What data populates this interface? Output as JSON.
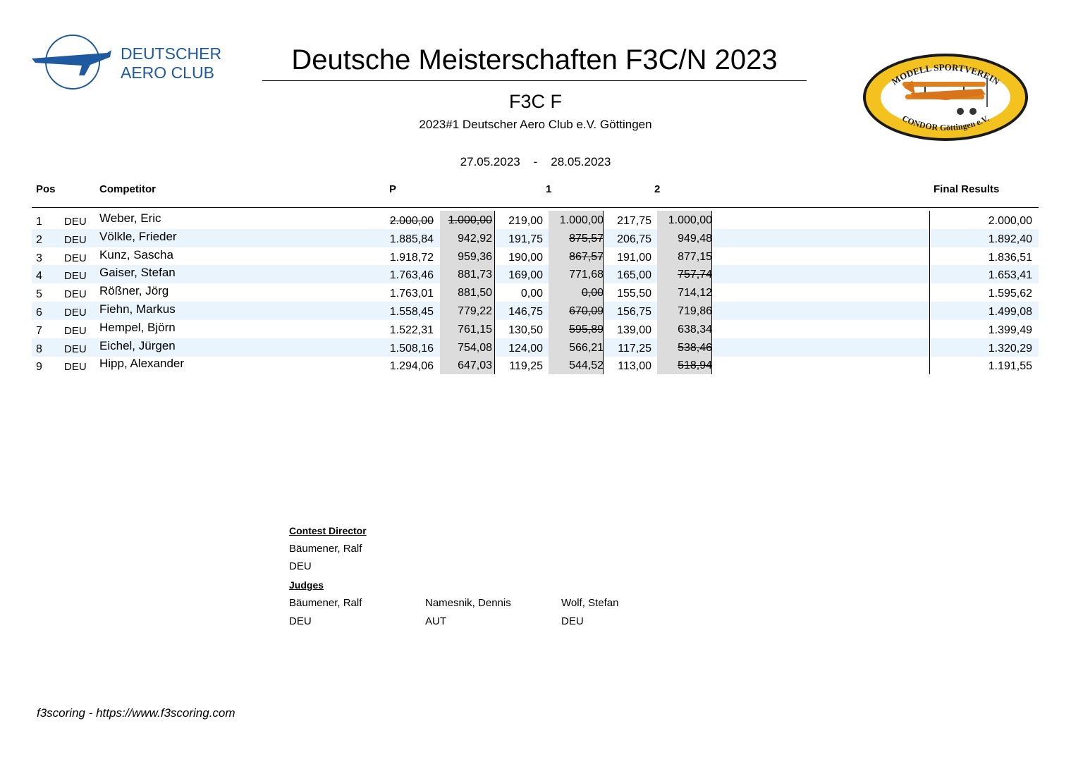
{
  "header": {
    "dac_logo_text": [
      "DEUTSCHER",
      "AERO CLUB"
    ],
    "title": "Deutsche Meisterschaften F3C/N 2023",
    "class_name": "F3C F",
    "event": "2023#1 Deutscher Aero Club e.V. Göttingen",
    "date_from": "27.05.2023",
    "date_sep": "-",
    "date_to": "28.05.2023",
    "club_logo_top": "MODELL SPORTVEREIN",
    "club_logo_bottom": "CONDOR Göttingen e.V."
  },
  "table": {
    "headers": {
      "pos": "Pos",
      "competitor": "Competitor",
      "p": "P",
      "r1": "1",
      "r2": "2",
      "final": "Final Results"
    },
    "rows": [
      {
        "pos": "1",
        "nat": "DEU",
        "name": "Weber, Eric",
        "p_raw": "2.000,00",
        "p_norm": "1.000,00",
        "r1_raw": "219,00",
        "r1_norm": "1.000,00",
        "r2_raw": "217,75",
        "r2_norm": "1.000,00",
        "final": "2.000,00",
        "struck": [
          "p_raw",
          "p_norm"
        ]
      },
      {
        "pos": "2",
        "nat": "DEU",
        "name": "Völkle, Frieder",
        "p_raw": "1.885,84",
        "p_norm": "942,92",
        "r1_raw": "191,75",
        "r1_norm": "875,57",
        "r2_raw": "206,75",
        "r2_norm": "949,48",
        "final": "1.892,40",
        "struck": [
          "r1_norm"
        ]
      },
      {
        "pos": "3",
        "nat": "DEU",
        "name": "Kunz, Sascha",
        "p_raw": "1.918,72",
        "p_norm": "959,36",
        "r1_raw": "190,00",
        "r1_norm": "867,57",
        "r2_raw": "191,00",
        "r2_norm": "877,15",
        "final": "1.836,51",
        "struck": [
          "r1_norm"
        ]
      },
      {
        "pos": "4",
        "nat": "DEU",
        "name": "Gaiser, Stefan",
        "p_raw": "1.763,46",
        "p_norm": "881,73",
        "r1_raw": "169,00",
        "r1_norm": "771,68",
        "r2_raw": "165,00",
        "r2_norm": "757,74",
        "final": "1.653,41",
        "struck": [
          "r2_norm"
        ]
      },
      {
        "pos": "5",
        "nat": "DEU",
        "name": "Rößner, Jörg",
        "p_raw": "1.763,01",
        "p_norm": "881,50",
        "r1_raw": "0,00",
        "r1_norm": "0,00",
        "r2_raw": "155,50",
        "r2_norm": "714,12",
        "final": "1.595,62",
        "struck": [
          "r1_norm"
        ]
      },
      {
        "pos": "6",
        "nat": "DEU",
        "name": "Fiehn, Markus",
        "p_raw": "1.558,45",
        "p_norm": "779,22",
        "r1_raw": "146,75",
        "r1_norm": "670,09",
        "r2_raw": "156,75",
        "r2_norm": "719,86",
        "final": "1.499,08",
        "struck": [
          "r1_norm"
        ]
      },
      {
        "pos": "7",
        "nat": "DEU",
        "name": "Hempel, Björn",
        "p_raw": "1.522,31",
        "p_norm": "761,15",
        "r1_raw": "130,50",
        "r1_norm": "595,89",
        "r2_raw": "139,00",
        "r2_norm": "638,34",
        "final": "1.399,49",
        "struck": [
          "r1_norm"
        ]
      },
      {
        "pos": "8",
        "nat": "DEU",
        "name": "Eichel, Jürgen",
        "p_raw": "1.508,16",
        "p_norm": "754,08",
        "r1_raw": "124,00",
        "r1_norm": "566,21",
        "r2_raw": "117,25",
        "r2_norm": "538,46",
        "final": "1.320,29",
        "struck": [
          "r2_norm"
        ]
      },
      {
        "pos": "9",
        "nat": "DEU",
        "name": "Hipp, Alexander",
        "p_raw": "1.294,06",
        "p_norm": "647,03",
        "r1_raw": "119,25",
        "r1_norm": "544,52",
        "r2_raw": "113,00",
        "r2_norm": "518,94",
        "final": "1.191,55",
        "struck": [
          "r2_norm"
        ]
      }
    ]
  },
  "officials": {
    "director_heading": "Contest Director",
    "director_name": "Bäumener, Ralf",
    "director_nat": "DEU",
    "judges_heading": "Judges",
    "judges": [
      {
        "name": "Bäumener, Ralf",
        "nat": "DEU"
      },
      {
        "name": "Namesnik, Dennis",
        "nat": "AUT"
      },
      {
        "name": "Wolf, Stefan",
        "nat": "DEU"
      }
    ]
  },
  "footer": "f3scoring - https://www.f3scoring.com"
}
